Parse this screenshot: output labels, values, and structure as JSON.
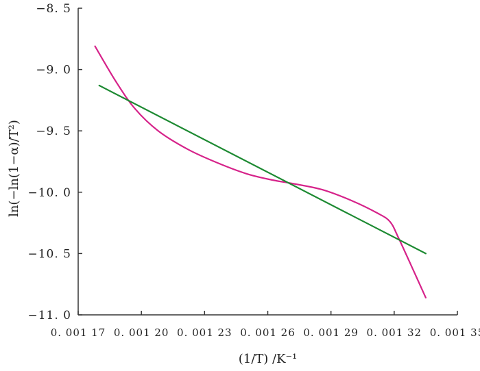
{
  "chart_data": {
    "type": "line",
    "xlabel": "(1/T) /K⁻¹",
    "ylabel": "ln(−ln(1−α)/T²)",
    "xlim": [
      0.00117,
      0.00135
    ],
    "ylim": [
      -11.0,
      -8.5
    ],
    "x_ticks": [
      {
        "value": 0.00117,
        "label": "0. 001 17"
      },
      {
        "value": 0.0012,
        "label": "0. 001 20"
      },
      {
        "value": 0.00123,
        "label": "0. 001 23"
      },
      {
        "value": 0.00126,
        "label": "0. 001 26"
      },
      {
        "value": 0.00129,
        "label": "0. 001 29"
      },
      {
        "value": 0.00132,
        "label": "0. 001 32"
      },
      {
        "value": 0.00135,
        "label": "0. 001 35"
      }
    ],
    "y_ticks": [
      {
        "value": -8.5,
        "label": "−8. 5"
      },
      {
        "value": -9.0,
        "label": "−9. 0"
      },
      {
        "value": -9.5,
        "label": "−9. 5"
      },
      {
        "value": -10.0,
        "label": "−10. 0"
      },
      {
        "value": -10.5,
        "label": "−10. 5"
      },
      {
        "value": -11.0,
        "label": "−11. 0"
      }
    ],
    "grid": false,
    "legend": "none",
    "series": [
      {
        "color": "#d6238a",
        "style": "curve",
        "x": [
          0.001178,
          0.001188,
          0.001197,
          0.001208,
          0.001222,
          0.001236,
          0.00125,
          0.001262,
          0.001272,
          0.001286,
          0.0013,
          0.001312,
          0.001318,
          0.001322,
          0.00133,
          0.001335
        ],
        "y": [
          -8.81,
          -9.1,
          -9.32,
          -9.5,
          -9.65,
          -9.76,
          -9.85,
          -9.9,
          -9.93,
          -9.98,
          -10.07,
          -10.17,
          -10.24,
          -10.37,
          -10.67,
          -10.86
        ]
      },
      {
        "color": "#1d8a32",
        "style": "line",
        "x": [
          0.00118,
          0.001335
        ],
        "y": [
          -9.13,
          -10.5
        ]
      }
    ]
  }
}
